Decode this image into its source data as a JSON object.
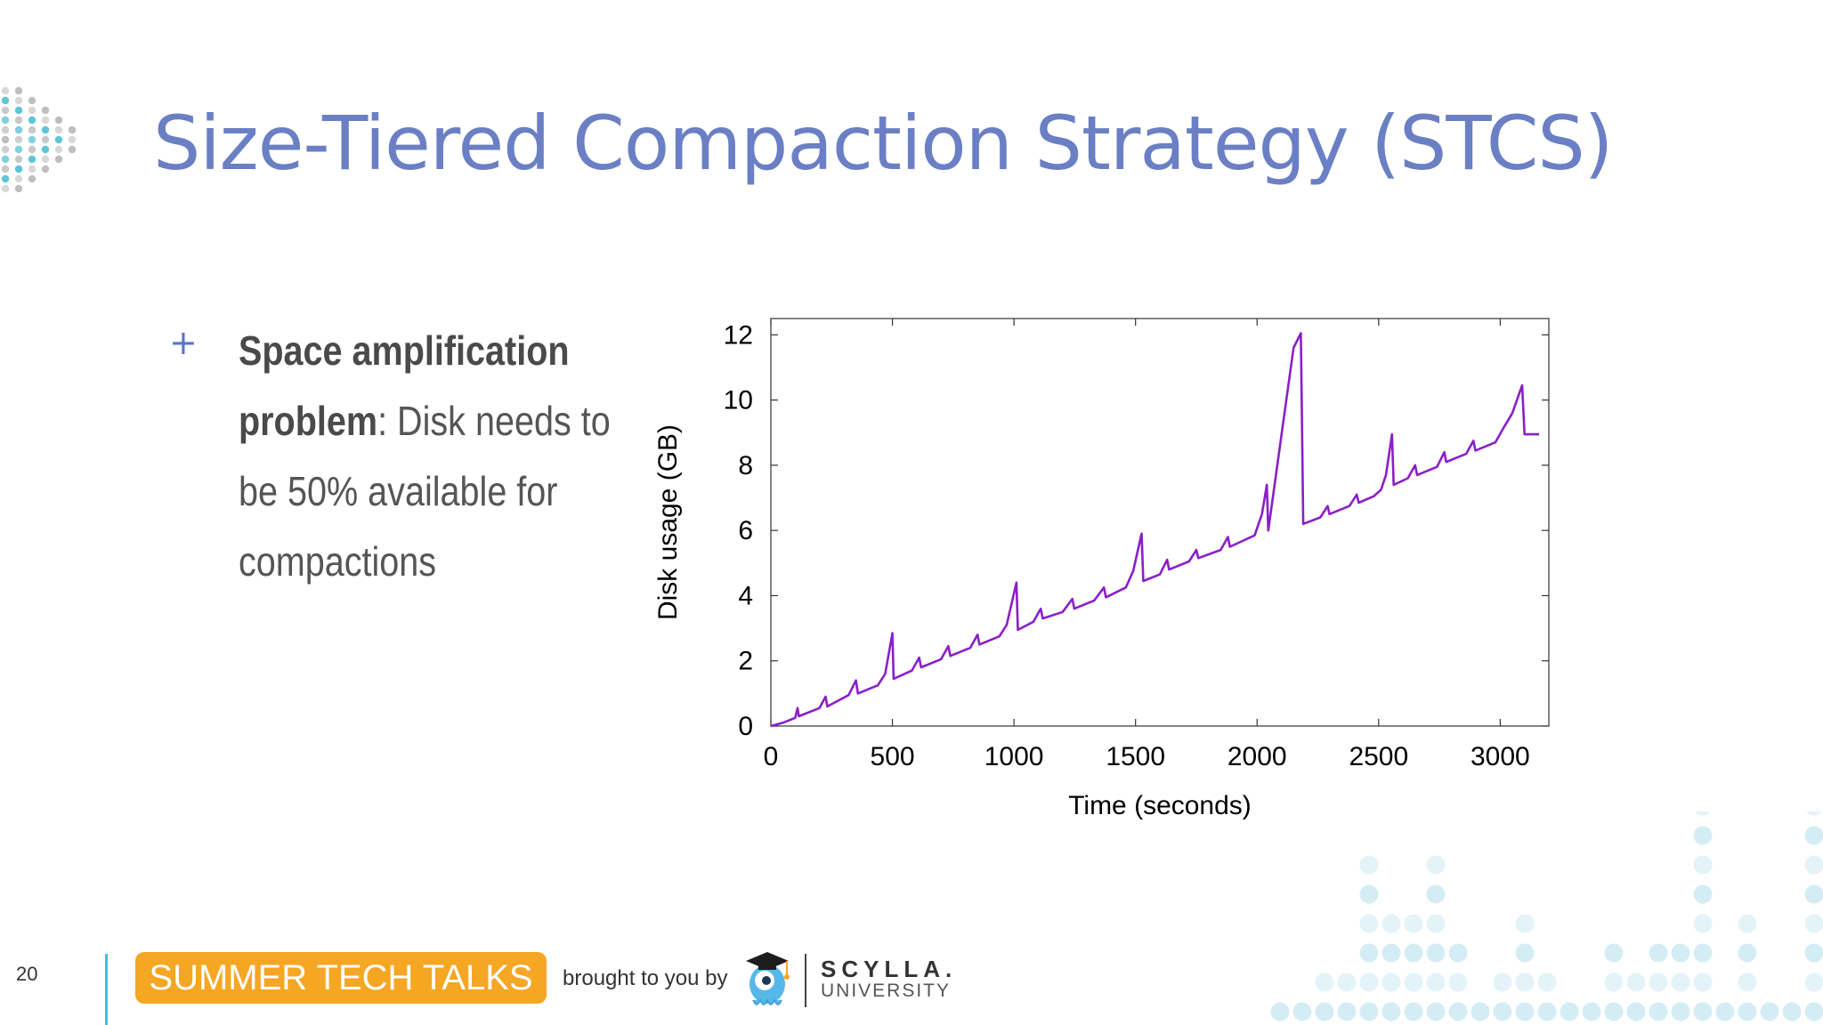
{
  "slide": {
    "title": "Size-Tiered Compaction Strategy (STCS)",
    "page_number": "20"
  },
  "bullet": {
    "marker": "+",
    "bold_text": "Space amplification problem",
    "rest_text": ": Disk needs to be 50% available for compactions"
  },
  "chart_data": {
    "type": "line",
    "title": "",
    "xlabel": "Time (seconds)",
    "ylabel": "Disk usage (GB)",
    "xlim": [
      0,
      3200
    ],
    "ylim": [
      0,
      12.5
    ],
    "x_ticks": [
      0,
      500,
      1000,
      1500,
      2000,
      2500,
      3000
    ],
    "y_ticks": [
      0,
      2,
      4,
      6,
      8,
      10,
      12
    ],
    "grid": false,
    "legend": "none",
    "series": [
      {
        "color": "#8a1fc8",
        "points": [
          [
            0,
            0.0
          ],
          [
            50,
            0.1
          ],
          [
            100,
            0.25
          ],
          [
            110,
            0.55
          ],
          [
            115,
            0.3
          ],
          [
            200,
            0.55
          ],
          [
            225,
            0.9
          ],
          [
            232,
            0.6
          ],
          [
            320,
            0.95
          ],
          [
            350,
            1.4
          ],
          [
            358,
            1.0
          ],
          [
            440,
            1.25
          ],
          [
            470,
            1.6
          ],
          [
            500,
            2.85
          ],
          [
            505,
            1.45
          ],
          [
            580,
            1.7
          ],
          [
            610,
            2.1
          ],
          [
            618,
            1.8
          ],
          [
            700,
            2.05
          ],
          [
            730,
            2.45
          ],
          [
            738,
            2.15
          ],
          [
            820,
            2.4
          ],
          [
            850,
            2.8
          ],
          [
            858,
            2.5
          ],
          [
            940,
            2.75
          ],
          [
            970,
            3.1
          ],
          [
            1010,
            4.4
          ],
          [
            1016,
            2.95
          ],
          [
            1080,
            3.2
          ],
          [
            1110,
            3.6
          ],
          [
            1118,
            3.3
          ],
          [
            1200,
            3.5
          ],
          [
            1240,
            3.9
          ],
          [
            1248,
            3.6
          ],
          [
            1330,
            3.85
          ],
          [
            1370,
            4.25
          ],
          [
            1378,
            3.95
          ],
          [
            1460,
            4.25
          ],
          [
            1490,
            4.75
          ],
          [
            1525,
            5.9
          ],
          [
            1532,
            4.45
          ],
          [
            1600,
            4.65
          ],
          [
            1630,
            5.1
          ],
          [
            1638,
            4.8
          ],
          [
            1720,
            5.05
          ],
          [
            1750,
            5.4
          ],
          [
            1758,
            5.15
          ],
          [
            1850,
            5.4
          ],
          [
            1880,
            5.8
          ],
          [
            1888,
            5.5
          ],
          [
            1990,
            5.85
          ],
          [
            2020,
            6.5
          ],
          [
            2040,
            7.4
          ],
          [
            2046,
            6.0
          ],
          [
            2150,
            11.6
          ],
          [
            2180,
            12.05
          ],
          [
            2190,
            6.2
          ],
          [
            2260,
            6.4
          ],
          [
            2290,
            6.75
          ],
          [
            2298,
            6.5
          ],
          [
            2380,
            6.75
          ],
          [
            2410,
            7.1
          ],
          [
            2418,
            6.85
          ],
          [
            2480,
            7.05
          ],
          [
            2510,
            7.25
          ],
          [
            2530,
            7.7
          ],
          [
            2555,
            8.95
          ],
          [
            2562,
            7.4
          ],
          [
            2620,
            7.6
          ],
          [
            2650,
            8.0
          ],
          [
            2658,
            7.7
          ],
          [
            2740,
            7.95
          ],
          [
            2770,
            8.4
          ],
          [
            2778,
            8.1
          ],
          [
            2860,
            8.35
          ],
          [
            2890,
            8.75
          ],
          [
            2898,
            8.45
          ],
          [
            2980,
            8.7
          ],
          [
            3010,
            9.1
          ],
          [
            3050,
            9.6
          ],
          [
            3090,
            10.45
          ],
          [
            3100,
            8.95
          ],
          [
            3160,
            8.95
          ]
        ]
      }
    ]
  },
  "footer": {
    "banner_text": "SUMMER TECH TALKS",
    "brought_by": "brought to you by",
    "brand_name": "SCYLLA.",
    "brand_sub": "UNIVERSITY",
    "banner_color": "#f5a623",
    "accent_color": "#4fb8dc"
  }
}
